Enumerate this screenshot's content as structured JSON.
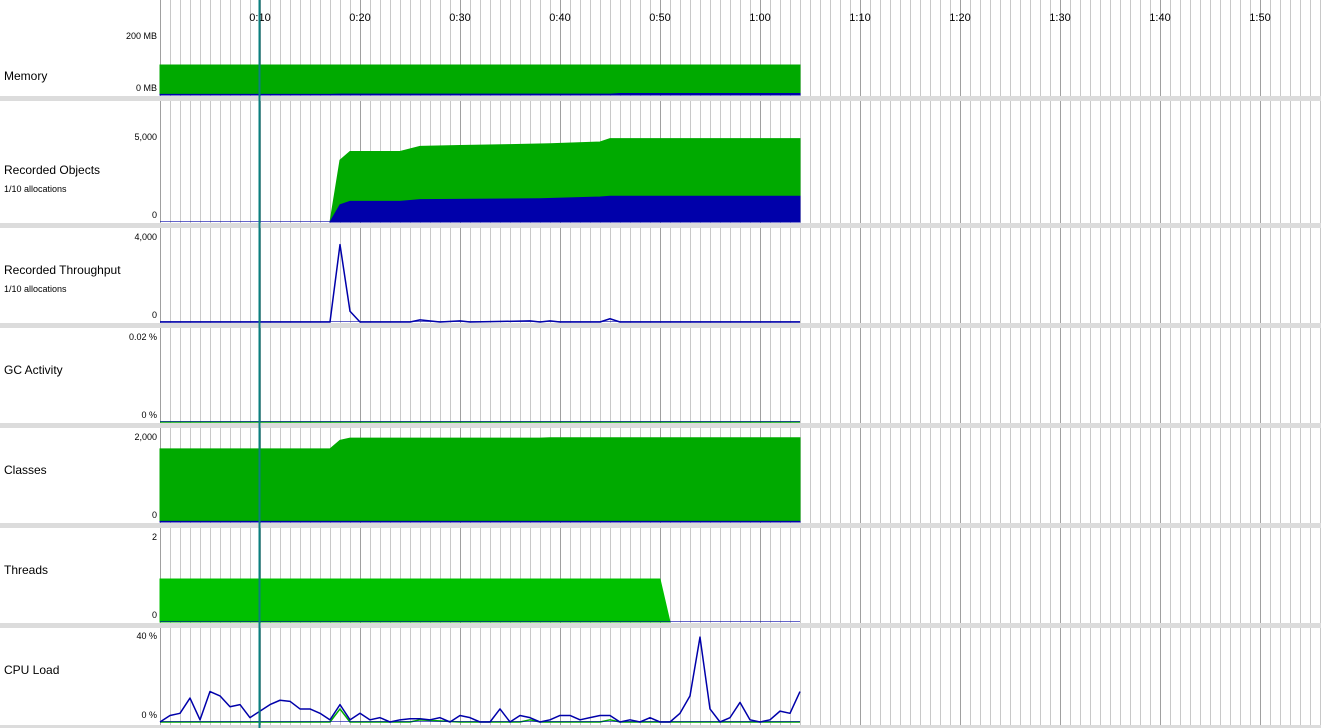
{
  "colors": {
    "green": "#00aa00",
    "blue": "#0000aa",
    "bright_green": "#00c000",
    "cursor": "#0a7f7f",
    "grid": "#c8c8c8",
    "separator": "#dcdcdc"
  },
  "time_axis": {
    "unit": "seconds",
    "ticks": [
      {
        "t": 10,
        "label": "0:10"
      },
      {
        "t": 20,
        "label": "0:20"
      },
      {
        "t": 30,
        "label": "0:30"
      },
      {
        "t": 40,
        "label": "0:40"
      },
      {
        "t": 50,
        "label": "0:50"
      },
      {
        "t": 60,
        "label": "1:00"
      },
      {
        "t": 70,
        "label": "1:10"
      },
      {
        "t": 80,
        "label": "1:20"
      },
      {
        "t": 90,
        "label": "1:30"
      },
      {
        "t": 100,
        "label": "1:40"
      },
      {
        "t": 110,
        "label": "1:50"
      }
    ],
    "range": [
      0,
      116
    ],
    "data_end": 64,
    "cursor_t": 10
  },
  "panels": [
    {
      "id": "memory",
      "title": "Memory",
      "subtitle": "",
      "ymax_label": "200 MB",
      "ymin_label": "0 MB",
      "ymax": 200,
      "chart_data": {
        "type": "area",
        "series": [
          {
            "color": "green",
            "points": [
              [
                0,
                100
              ],
              [
                64,
                100
              ]
            ]
          },
          {
            "color": "blue",
            "points": [
              [
                0,
                2
              ],
              [
                17,
                2
              ],
              [
                18,
                3
              ],
              [
                45,
                3
              ],
              [
                46,
                5
              ],
              [
                64,
                5
              ]
            ]
          }
        ]
      }
    },
    {
      "id": "recorded-objects",
      "title": "Recorded Objects",
      "subtitle": "1/10 allocations",
      "ymax_label": "5,000",
      "ymin_label": "0",
      "ymax": 5000,
      "chart_data": {
        "type": "area",
        "series": [
          {
            "color": "green",
            "points": [
              [
                17,
                0
              ],
              [
                18,
                3600
              ],
              [
                19,
                4100
              ],
              [
                24,
                4100
              ],
              [
                26,
                4400
              ],
              [
                30,
                4450
              ],
              [
                35,
                4500
              ],
              [
                39,
                4550
              ],
              [
                44,
                4650
              ],
              [
                45,
                4850
              ],
              [
                64,
                4850
              ]
            ]
          },
          {
            "color": "blue",
            "points": [
              [
                17,
                0
              ],
              [
                18,
                1000
              ],
              [
                19,
                1200
              ],
              [
                24,
                1200
              ],
              [
                26,
                1300
              ],
              [
                38,
                1350
              ],
              [
                44,
                1450
              ],
              [
                45,
                1500
              ],
              [
                64,
                1500
              ]
            ]
          }
        ]
      }
    },
    {
      "id": "recorded-throughput",
      "title": "Recorded Throughput",
      "subtitle": "1/10 allocations",
      "ymax_label": "4,000",
      "ymin_label": "0",
      "ymax": 4000,
      "chart_data": {
        "type": "line",
        "series": [
          {
            "color": "blue",
            "points": [
              [
                0,
                0
              ],
              [
                17,
                0
              ],
              [
                18,
                3600
              ],
              [
                19,
                500
              ],
              [
                20,
                0
              ],
              [
                25,
                0
              ],
              [
                26,
                100
              ],
              [
                28,
                0
              ],
              [
                30,
                50
              ],
              [
                31,
                0
              ],
              [
                37,
                50
              ],
              [
                38,
                0
              ],
              [
                39,
                50
              ],
              [
                40,
                0
              ],
              [
                44,
                0
              ],
              [
                45,
                150
              ],
              [
                46,
                0
              ],
              [
                64,
                0
              ]
            ]
          }
        ]
      }
    },
    {
      "id": "gc-activity",
      "title": "GC Activity",
      "subtitle": "",
      "ymax_label": "0.02 %",
      "ymin_label": "0 %",
      "ymax": 0.02,
      "chart_data": {
        "type": "line",
        "series": [
          {
            "color": "green",
            "points": [
              [
                0,
                0
              ],
              [
                64,
                0
              ]
            ]
          }
        ]
      }
    },
    {
      "id": "classes",
      "title": "Classes",
      "subtitle": "",
      "ymax_label": "2,000",
      "ymin_label": "0",
      "ymax": 2000,
      "chart_data": {
        "type": "area",
        "series": [
          {
            "color": "green",
            "points": [
              [
                0,
                1700
              ],
              [
                17,
                1700
              ],
              [
                18,
                1900
              ],
              [
                19,
                1950
              ],
              [
                38,
                1950
              ],
              [
                39,
                1960
              ],
              [
                64,
                1960
              ]
            ]
          },
          {
            "color": "blue",
            "points": [
              [
                0,
                15
              ],
              [
                64,
                15
              ]
            ]
          }
        ]
      }
    },
    {
      "id": "threads",
      "title": "Threads",
      "subtitle": "",
      "ymax_label": "2",
      "ymin_label": "0",
      "ymax": 2,
      "chart_data": {
        "type": "area",
        "series": [
          {
            "color": "bright_green",
            "points": [
              [
                0,
                1
              ],
              [
                50,
                1
              ],
              [
                51,
                0
              ]
            ]
          }
        ]
      }
    },
    {
      "id": "cpu-load",
      "title": "CPU Load",
      "subtitle": "",
      "ymax_label": "40 %",
      "ymin_label": "0 %",
      "ymax": 40,
      "chart_data": {
        "type": "line",
        "series": [
          {
            "color": "green",
            "points": [
              [
                0,
                0
              ],
              [
                17,
                0
              ],
              [
                18,
                6
              ],
              [
                19,
                0
              ],
              [
                25,
                0
              ],
              [
                26,
                1
              ],
              [
                30,
                0
              ],
              [
                36,
                0
              ],
              [
                37,
                1
              ],
              [
                38,
                0
              ],
              [
                44,
                0
              ],
              [
                45,
                1
              ],
              [
                46,
                0
              ],
              [
                64,
                0
              ]
            ]
          },
          {
            "color": "blue",
            "points": [
              [
                0,
                0
              ],
              [
                1,
                3
              ],
              [
                2,
                4
              ],
              [
                3,
                11
              ],
              [
                4,
                1
              ],
              [
                5,
                14
              ],
              [
                6,
                12
              ],
              [
                7,
                7
              ],
              [
                8,
                8
              ],
              [
                9,
                2
              ],
              [
                10,
                5
              ],
              [
                11,
                8
              ],
              [
                12,
                10
              ],
              [
                13,
                9.5
              ],
              [
                14,
                6
              ],
              [
                15,
                6
              ],
              [
                16,
                4
              ],
              [
                17,
                1
              ],
              [
                18,
                8
              ],
              [
                19,
                1
              ],
              [
                20,
                4
              ],
              [
                21,
                1
              ],
              [
                22,
                2
              ],
              [
                23,
                0
              ],
              [
                24,
                1
              ],
              [
                25,
                1.5
              ],
              [
                26,
                1.5
              ],
              [
                27,
                1
              ],
              [
                28,
                2
              ],
              [
                29,
                0
              ],
              [
                30,
                3
              ],
              [
                31,
                2
              ],
              [
                32,
                0
              ],
              [
                33,
                0
              ],
              [
                34,
                6
              ],
              [
                35,
                0
              ],
              [
                36,
                3
              ],
              [
                37,
                2
              ],
              [
                38,
                0
              ],
              [
                39,
                1
              ],
              [
                40,
                3
              ],
              [
                41,
                3
              ],
              [
                42,
                1
              ],
              [
                43,
                2
              ],
              [
                44,
                3
              ],
              [
                45,
                3
              ],
              [
                46,
                0
              ],
              [
                47,
                1
              ],
              [
                48,
                0
              ],
              [
                49,
                2
              ],
              [
                50,
                0
              ],
              [
                51,
                0
              ],
              [
                52,
                4
              ],
              [
                53,
                12
              ],
              [
                54,
                39
              ],
              [
                55,
                6
              ],
              [
                56,
                0
              ],
              [
                57,
                2
              ],
              [
                58,
                9
              ],
              [
                59,
                1
              ],
              [
                60,
                0
              ],
              [
                61,
                1
              ],
              [
                62,
                5
              ],
              [
                63,
                4
              ],
              [
                64,
                14
              ]
            ]
          }
        ]
      }
    }
  ]
}
